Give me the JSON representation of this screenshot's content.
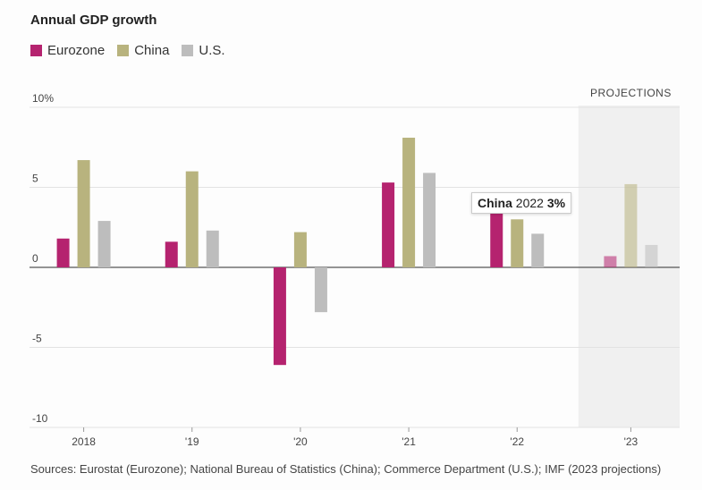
{
  "chart_data": {
    "type": "bar",
    "title": "Annual GDP growth",
    "categories": [
      "2018",
      "'19",
      "'20",
      "'21",
      "'22",
      "'23"
    ],
    "series": [
      {
        "name": "Eurozone",
        "color": "#b5236f",
        "values": [
          1.8,
          1.6,
          -6.1,
          5.3,
          3.5,
          0.7
        ]
      },
      {
        "name": "China",
        "color": "#b8b37e",
        "values": [
          6.7,
          6.0,
          2.2,
          8.1,
          3.0,
          5.2
        ]
      },
      {
        "name": "U.S.",
        "color": "#bdbdbd",
        "values": [
          2.9,
          2.3,
          -2.8,
          5.9,
          2.1,
          1.4
        ]
      }
    ],
    "ylim": [
      -10,
      10
    ],
    "yticks": [
      {
        "v": 10,
        "label": "10%"
      },
      {
        "v": 5,
        "label": "5"
      },
      {
        "v": 0,
        "label": "0"
      },
      {
        "v": -5,
        "label": "-5"
      },
      {
        "v": -10,
        "label": "-10"
      }
    ],
    "projection_label": "PROJECTIONS",
    "projection_category": "'23",
    "tooltip": {
      "series": "China",
      "year": "2022",
      "value": "3%"
    },
    "grid": true,
    "legend": "top-left",
    "source": "Sources: Eurostat (Eurozone); National Bureau of Statistics (China); Commerce Department (U.S.); IMF (2023 projections)"
  }
}
